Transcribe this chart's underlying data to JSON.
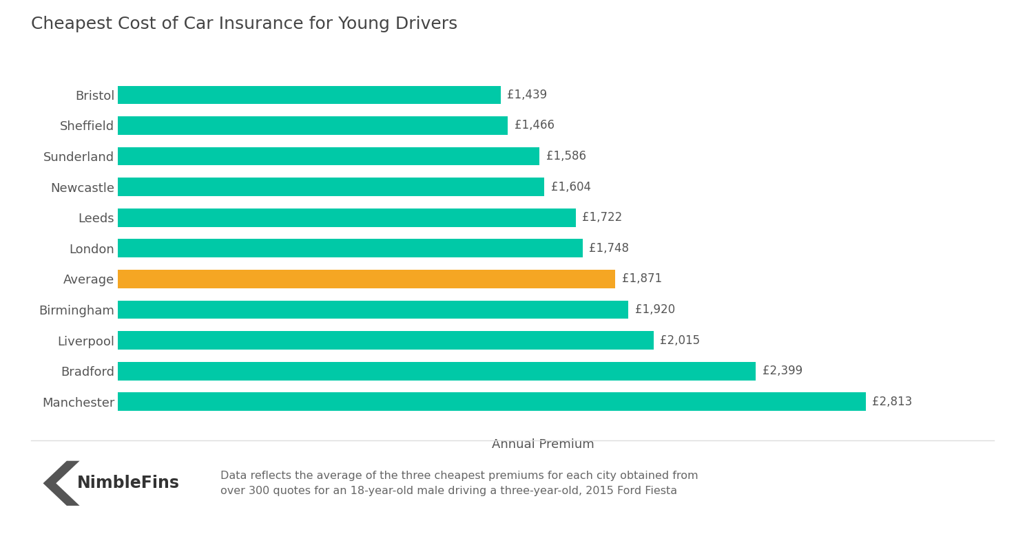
{
  "categories": [
    "Bristol",
    "Sheffield",
    "Sunderland",
    "Newcastle",
    "Leeds",
    "London",
    "Average",
    "Birmingham",
    "Liverpool",
    "Bradford",
    "Manchester"
  ],
  "values": [
    1439,
    1466,
    1586,
    1604,
    1722,
    1748,
    1871,
    1920,
    2015,
    2399,
    2813
  ],
  "labels": [
    "£1,439",
    "£1,466",
    "£1,586",
    "£1,604",
    "£1,722",
    "£1,748",
    "£1,871",
    "£1,920",
    "£2,015",
    "£2,399",
    "£2,813"
  ],
  "bar_colors": [
    "#00C9A7",
    "#00C9A7",
    "#00C9A7",
    "#00C9A7",
    "#00C9A7",
    "#00C9A7",
    "#F5A623",
    "#00C9A7",
    "#00C9A7",
    "#00C9A7",
    "#00C9A7"
  ],
  "title": "Cheapest Cost of Car Insurance for Young Drivers",
  "xlabel": "Annual Premium",
  "title_fontsize": 18,
  "label_fontsize": 12,
  "tick_fontsize": 13,
  "xlabel_fontsize": 13,
  "background_color": "#ffffff",
  "bar_height": 0.6,
  "xlim": [
    0,
    3200
  ],
  "footer_text": "Data reflects the average of the three cheapest premiums for each city obtained from\nover 300 quotes for an 18-year-old male driving a three-year-old, 2015 Ford Fiesta",
  "brand_name": "NimbleFins",
  "brand_color": "#555555",
  "text_color": "#555555",
  "teal_color": "#00C9A7"
}
